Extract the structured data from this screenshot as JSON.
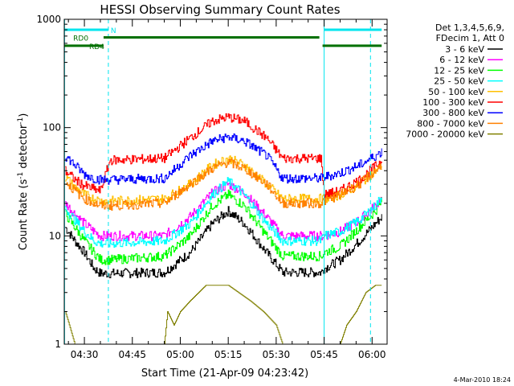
{
  "chart_data": {
    "type": "line",
    "title": "HESSI Observing Summary Count Rates",
    "xlabel": "Start Time (21-Apr-09 04:23:42)",
    "ylabel_main": "Count Rate (s",
    "ylabel_sup1": "-1",
    "ylabel_mid": " detector",
    "ylabel_sup2": "-1",
    "ylabel_end": ")",
    "y_scale": "log",
    "ylim": [
      1,
      1000
    ],
    "xlim_minutes": [
      -6.3,
      94.7
    ],
    "x_ticks": [
      {
        "label": "04:30",
        "minutes": 0
      },
      {
        "label": "04:45",
        "minutes": 15
      },
      {
        "label": "05:00",
        "minutes": 30
      },
      {
        "label": "05:15",
        "minutes": 45
      },
      {
        "label": "05:30",
        "minutes": 60
      },
      {
        "label": "05:45",
        "minutes": 75
      },
      {
        "label": "06:00",
        "minutes": 90
      }
    ],
    "y_ticks": [
      {
        "label": "1",
        "value": 1
      },
      {
        "label": "10",
        "value": 10
      },
      {
        "label": "100",
        "value": 100
      },
      {
        "label": "1000",
        "value": 1000
      }
    ],
    "legend_header": [
      "Det 1,3,4,5,6,9,",
      "FDecim 1, Att 0"
    ],
    "legend_position": "right",
    "footer_date": "4-Mar-2010 18:24",
    "cyan_solid_lines_minutes": [
      -6.2,
      75.0
    ],
    "cyan_dashed_lines_minutes": [
      7.5,
      89.5
    ],
    "flags": [
      {
        "label": "N",
        "color": "#00e5ee",
        "segments": [
          [
            -6.2,
            7.5
          ],
          [
            75.0,
            93.0
          ]
        ],
        "value": 800
      },
      {
        "label": "RD0",
        "color": "#007000",
        "segments": [
          [
            6.0,
            73.5
          ]
        ],
        "value": 680
      },
      {
        "label": "RD4",
        "color": "#007000",
        "segments": [
          [
            -6.2,
            6.0
          ],
          [
            74.5,
            93.0
          ]
        ],
        "value": 570
      }
    ],
    "series": [
      {
        "name": "3 - 6 keV",
        "color": "#000000",
        "points": [
          [
            -6,
            12
          ],
          [
            -3,
            9
          ],
          [
            0,
            7
          ],
          [
            3,
            5
          ],
          [
            5,
            4.5
          ],
          [
            8,
            4.5
          ],
          [
            25,
            4.6
          ],
          [
            33,
            7
          ],
          [
            40,
            13
          ],
          [
            45,
            17
          ],
          [
            50,
            13
          ],
          [
            57,
            7
          ],
          [
            62,
            4.6
          ],
          [
            74,
            4.6
          ],
          [
            75,
            5
          ],
          [
            80,
            6
          ],
          [
            86,
            9
          ],
          [
            91,
            13
          ],
          [
            93,
            15
          ]
        ]
      },
      {
        "name": "6 - 12 keV",
        "color": "#ff00ff",
        "points": [
          [
            -6,
            20
          ],
          [
            -3,
            16
          ],
          [
            0,
            13
          ],
          [
            3,
            11
          ],
          [
            5,
            10
          ],
          [
            8,
            10
          ],
          [
            25,
            10
          ],
          [
            33,
            15
          ],
          [
            40,
            25
          ],
          [
            45,
            30
          ],
          [
            50,
            25
          ],
          [
            57,
            15
          ],
          [
            62,
            10
          ],
          [
            74,
            10
          ],
          [
            75,
            10
          ],
          [
            80,
            11
          ],
          [
            86,
            14
          ],
          [
            91,
            19
          ],
          [
            93,
            22
          ]
        ]
      },
      {
        "name": "12 - 25 keV",
        "color": "#00ff00",
        "points": [
          [
            -6,
            16
          ],
          [
            -3,
            12
          ],
          [
            0,
            9
          ],
          [
            3,
            7
          ],
          [
            5,
            6
          ],
          [
            8,
            6
          ],
          [
            25,
            6.5
          ],
          [
            33,
            10
          ],
          [
            40,
            19
          ],
          [
            45,
            24
          ],
          [
            50,
            19
          ],
          [
            57,
            10
          ],
          [
            62,
            6.5
          ],
          [
            74,
            6.5
          ],
          [
            75,
            7
          ],
          [
            80,
            8
          ],
          [
            86,
            12
          ],
          [
            91,
            17
          ],
          [
            93,
            21
          ]
        ]
      },
      {
        "name": "25 - 50 keV",
        "color": "#00ffff",
        "points": [
          [
            -6,
            18
          ],
          [
            -3,
            14
          ],
          [
            0,
            11
          ],
          [
            3,
            9
          ],
          [
            5,
            8.5
          ],
          [
            8,
            8.5
          ],
          [
            25,
            9
          ],
          [
            33,
            13
          ],
          [
            40,
            24
          ],
          [
            45,
            32
          ],
          [
            50,
            24
          ],
          [
            57,
            13
          ],
          [
            62,
            9
          ],
          [
            74,
            9
          ],
          [
            75,
            10
          ],
          [
            80,
            11
          ],
          [
            86,
            14
          ],
          [
            91,
            19
          ],
          [
            93,
            23
          ]
        ]
      },
      {
        "name": "50 - 100 keV",
        "color": "#ffbf00",
        "points": [
          [
            -6,
            35
          ],
          [
            -3,
            28
          ],
          [
            0,
            24
          ],
          [
            3,
            22
          ],
          [
            5,
            21
          ],
          [
            8,
            21
          ],
          [
            25,
            22
          ],
          [
            33,
            30
          ],
          [
            40,
            45
          ],
          [
            45,
            52
          ],
          [
            50,
            45
          ],
          [
            57,
            30
          ],
          [
            62,
            22
          ],
          [
            74,
            22
          ],
          [
            75,
            22
          ],
          [
            80,
            24
          ],
          [
            86,
            30
          ],
          [
            91,
            40
          ],
          [
            93,
            45
          ]
        ]
      },
      {
        "name": "100 - 300 keV",
        "color": "#ff0000",
        "points": [
          [
            -6,
            40
          ],
          [
            -3,
            33
          ],
          [
            0,
            29
          ],
          [
            3,
            27
          ],
          [
            5,
            26
          ],
          [
            8,
            50
          ],
          [
            25,
            52
          ],
          [
            33,
            80
          ],
          [
            40,
            115
          ],
          [
            45,
            125
          ],
          [
            50,
            115
          ],
          [
            57,
            80
          ],
          [
            62,
            52
          ],
          [
            74,
            52
          ],
          [
            75,
            24
          ],
          [
            80,
            26
          ],
          [
            86,
            33
          ],
          [
            91,
            44
          ],
          [
            93,
            50
          ]
        ]
      },
      {
        "name": "300 - 800 keV",
        "color": "#0000ff",
        "points": [
          [
            -6,
            55
          ],
          [
            -3,
            45
          ],
          [
            0,
            37
          ],
          [
            3,
            34
          ],
          [
            5,
            33
          ],
          [
            8,
            33
          ],
          [
            25,
            34
          ],
          [
            33,
            55
          ],
          [
            40,
            75
          ],
          [
            45,
            82
          ],
          [
            50,
            75
          ],
          [
            57,
            55
          ],
          [
            62,
            34
          ],
          [
            74,
            34
          ],
          [
            75,
            35
          ],
          [
            80,
            38
          ],
          [
            86,
            45
          ],
          [
            91,
            55
          ],
          [
            93,
            60
          ]
        ]
      },
      {
        "name": "800 - 7000 keV",
        "color": "#ff8000",
        "points": [
          [
            -6,
            32
          ],
          [
            -3,
            26
          ],
          [
            0,
            22
          ],
          [
            3,
            20
          ],
          [
            5,
            19
          ],
          [
            8,
            19
          ],
          [
            25,
            20
          ],
          [
            33,
            30
          ],
          [
            40,
            42
          ],
          [
            45,
            48
          ],
          [
            50,
            42
          ],
          [
            57,
            30
          ],
          [
            62,
            20
          ],
          [
            74,
            20
          ],
          [
            75,
            21
          ],
          [
            80,
            24
          ],
          [
            86,
            30
          ],
          [
            91,
            40
          ],
          [
            93,
            45
          ]
        ]
      },
      {
        "name": "7000 - 20000 keV",
        "color": "#808000",
        "points": [
          [
            -6,
            2
          ],
          [
            -5,
            1.6
          ],
          [
            -3,
            1
          ],
          [
            0,
            1
          ],
          [
            25,
            1
          ],
          [
            26,
            2
          ],
          [
            28,
            1.5
          ],
          [
            30,
            2
          ],
          [
            33,
            2.5
          ],
          [
            38,
            3.5
          ],
          [
            45,
            3.5
          ],
          [
            52,
            2.5
          ],
          [
            56,
            2
          ],
          [
            60,
            1.5
          ],
          [
            62,
            1
          ],
          [
            80,
            1
          ],
          [
            82,
            1.5
          ],
          [
            85,
            2
          ],
          [
            88,
            3
          ],
          [
            91,
            3.5
          ],
          [
            93,
            3.5
          ]
        ]
      }
    ]
  }
}
